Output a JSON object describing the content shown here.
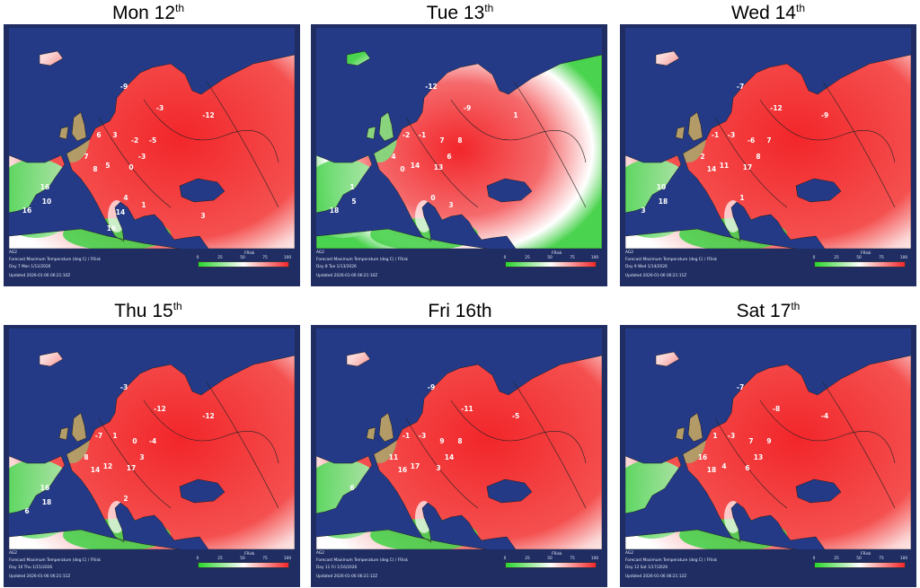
{
  "panels": [
    {
      "title": "Mon 12",
      "suffix": "th",
      "model": "AG2",
      "product": "Forecast Maximum Temperature (deg C) / FRisk",
      "valid": "Day 7 Mon 1/12/2026",
      "updated": "Updated 2026-01-06 06:21:10Z",
      "colorbar_title": "FRisk",
      "colorbar_ticks": [
        "0",
        "25",
        "50",
        "75",
        "100"
      ],
      "values": [
        "-9",
        "-3",
        "-12",
        "6",
        "3",
        "-2",
        "-5",
        "-3",
        "7",
        "8",
        "5",
        "0",
        "16",
        "10",
        "16",
        "4",
        "1",
        "14",
        "16",
        "3"
      ],
      "scale": "red"
    },
    {
      "title": "Tue 13",
      "suffix": "th",
      "model": "AG2",
      "product": "Forecast Maximum Temperature (deg C) / FRisk",
      "valid": "Day 8 Tue 1/13/2026",
      "updated": "Updated 2026-01-06 06:21:10Z",
      "colorbar_title": "FRisk",
      "colorbar_ticks": [
        "0",
        "25",
        "50",
        "75",
        "100"
      ],
      "values": [
        "-12",
        "-9",
        "1",
        "-2",
        "-1",
        "7",
        "8",
        "6",
        "4",
        "0",
        "14",
        "13",
        "1",
        "5",
        "18",
        "0",
        "3"
      ],
      "scale": "mixed"
    },
    {
      "title": "Wed 14",
      "suffix": "th",
      "model": "AG2",
      "product": "Forecast Maximum Temperature (deg C) / FRisk",
      "valid": "Day 9 Wed 1/14/2026",
      "updated": "Updated 2026-01-06 06:21:11Z",
      "colorbar_title": "FRisk",
      "colorbar_ticks": [
        "0",
        "25",
        "50",
        "75",
        "100"
      ],
      "values": [
        "-7",
        "-12",
        "-9",
        "-1",
        "-3",
        "-6",
        "7",
        "8",
        "2",
        "14",
        "11",
        "17",
        "10",
        "18",
        "3",
        "1"
      ],
      "scale": "red"
    },
    {
      "title": "Thu 15",
      "suffix": "th",
      "model": "AG2",
      "product": "Forecast Maximum Temperature (deg C) / FRisk",
      "valid": "Day 10 Thu 1/15/2026",
      "updated": "Updated 2026-01-06 06:21:11Z",
      "colorbar_title": "FRisk",
      "colorbar_ticks": [
        "0",
        "25",
        "50",
        "75",
        "100"
      ],
      "values": [
        "-3",
        "-12",
        "-12",
        "-7",
        "1",
        "0",
        "-4",
        "3",
        "8",
        "14",
        "12",
        "17",
        "16",
        "18",
        "6",
        "2"
      ],
      "scale": "red"
    },
    {
      "title": "Fri 16th",
      "suffix": "",
      "model": "AG2",
      "product": "Forecast Maximum Temperature (deg C) / FRisk",
      "valid": "Day 11 Fri 1/16/2026",
      "updated": "Updated 2026-01-06 06:21:12Z",
      "colorbar_title": "FRisk",
      "colorbar_ticks": [
        "0",
        "25",
        "50",
        "75",
        "100"
      ],
      "values": [
        "-9",
        "-11",
        "-5",
        "-1",
        "-3",
        "9",
        "8",
        "14",
        "11",
        "16",
        "17",
        "3",
        "6"
      ],
      "scale": "red"
    },
    {
      "title": "Sat 17",
      "suffix": "th",
      "model": "AG2",
      "product": "Forecast Maximum Temperature (deg C) / FRisk",
      "valid": "Day 12 Sat 1/17/2026",
      "updated": "Updated 2026-01-06 06:21:12Z",
      "colorbar_title": "FRisk",
      "colorbar_ticks": [
        "0",
        "25",
        "50",
        "75",
        "100"
      ],
      "values": [
        "-7",
        "-8",
        "-4",
        "1",
        "-3",
        "7",
        "9",
        "13",
        "16",
        "18",
        "4",
        "6"
      ],
      "scale": "red"
    }
  ]
}
